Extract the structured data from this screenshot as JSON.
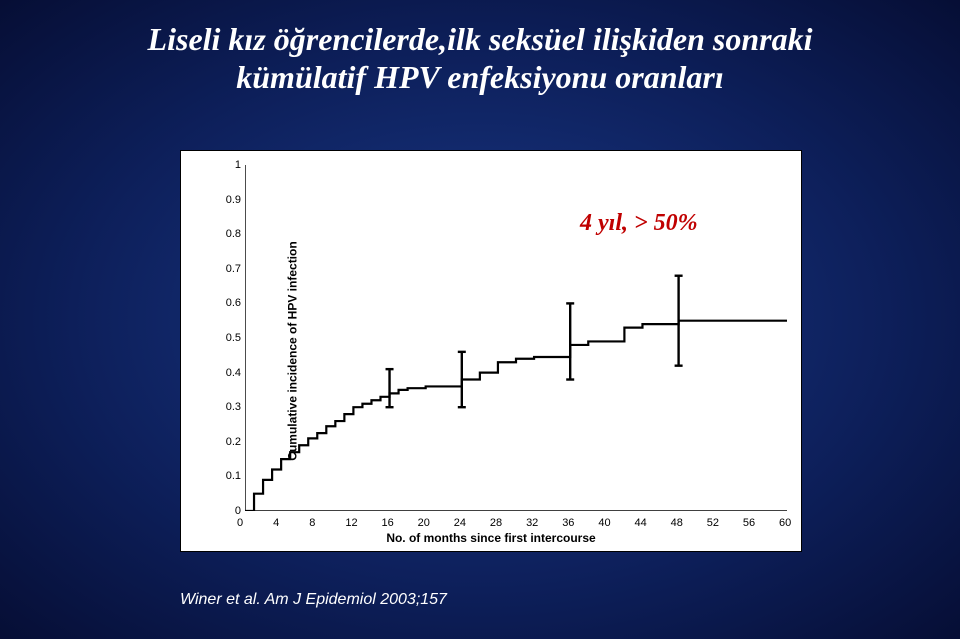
{
  "title_line1": "Liseli kız öğrencilerde,ilk seksüel ilişkiden sonraki",
  "title_line2": "kümülatif HPV enfeksiyonu oranları",
  "annotation": "4 yıl, > 50%",
  "citation": "Winer et al. Am J Epidemiol 2003;157",
  "chart": {
    "type": "kaplan-meier-step",
    "y_axis_label": "Cumulative incidence of HPV infection",
    "x_axis_label": "No. of months since first intercourse",
    "xlim": [
      0,
      60
    ],
    "ylim": [
      0,
      1
    ],
    "xtick_step": 4,
    "ytick_step": 0.1,
    "xticks": [
      0,
      4,
      8,
      12,
      16,
      20,
      24,
      28,
      32,
      36,
      40,
      44,
      48,
      52,
      56,
      60
    ],
    "yticks": [
      0,
      0.1,
      0.2,
      0.3,
      0.4,
      0.5,
      0.6,
      0.7,
      0.8,
      0.9,
      1
    ],
    "line_color": "#000000",
    "line_width": 2.2,
    "background_color": "#ffffff",
    "axis_color": "#000000",
    "tick_font_size": 11,
    "label_font_size": 12,
    "points": [
      [
        0,
        0.0
      ],
      [
        1,
        0.05
      ],
      [
        2,
        0.09
      ],
      [
        3,
        0.12
      ],
      [
        4,
        0.15
      ],
      [
        5,
        0.17
      ],
      [
        6,
        0.19
      ],
      [
        7,
        0.21
      ],
      [
        8,
        0.225
      ],
      [
        9,
        0.245
      ],
      [
        10,
        0.26
      ],
      [
        11,
        0.28
      ],
      [
        12,
        0.3
      ],
      [
        13,
        0.31
      ],
      [
        14,
        0.32
      ],
      [
        15,
        0.33
      ],
      [
        16,
        0.34
      ],
      [
        17,
        0.35
      ],
      [
        18,
        0.355
      ],
      [
        20,
        0.36
      ],
      [
        22,
        0.36
      ],
      [
        24,
        0.38
      ],
      [
        26,
        0.4
      ],
      [
        28,
        0.43
      ],
      [
        30,
        0.44
      ],
      [
        32,
        0.445
      ],
      [
        34,
        0.445
      ],
      [
        36,
        0.48
      ],
      [
        38,
        0.49
      ],
      [
        40,
        0.49
      ],
      [
        42,
        0.53
      ],
      [
        44,
        0.54
      ],
      [
        46,
        0.54
      ],
      [
        48,
        0.55
      ],
      [
        50,
        0.55
      ],
      [
        54,
        0.55
      ],
      [
        60,
        0.55
      ]
    ],
    "error_bars_ci": [
      {
        "x": 16,
        "low": 0.3,
        "high": 0.41
      },
      {
        "x": 24,
        "low": 0.3,
        "high": 0.46
      },
      {
        "x": 36,
        "low": 0.38,
        "high": 0.6
      },
      {
        "x": 48,
        "low": 0.42,
        "high": 0.68
      }
    ],
    "error_bar_color": "#000000",
    "error_bar_width": 2.4,
    "error_cap_halfwidth": 4
  },
  "colors": {
    "title": "#ffffff",
    "annotation": "#c00000",
    "citation": "#ffffff"
  },
  "fonts": {
    "title_size": 32,
    "title_weight": "bold",
    "title_style": "italic",
    "annotation_size": 24,
    "citation_size": 16
  }
}
